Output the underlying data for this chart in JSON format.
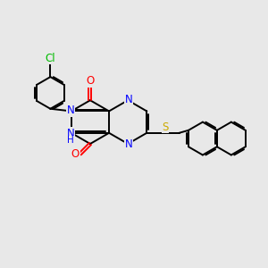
{
  "bg_color": "#e8e8e8",
  "bond_color": "#000000",
  "N_color": "#0000ff",
  "O_color": "#ff0000",
  "S_color": "#ccaa00",
  "Cl_color": "#00bb00",
  "lw": 1.4,
  "dbo": 0.055,
  "fs": 8.5,
  "xlim": [
    0,
    10
  ],
  "ylim": [
    0,
    10
  ]
}
